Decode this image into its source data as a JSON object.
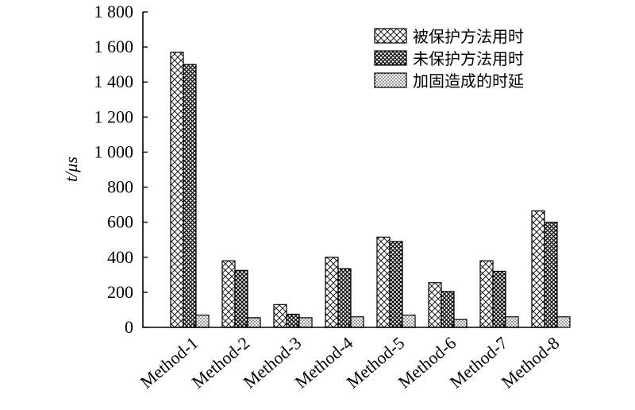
{
  "chart_data": {
    "type": "bar",
    "ylabel": "t/μs",
    "ylim": [
      0,
      1800
    ],
    "yticks": [
      0,
      200,
      400,
      600,
      800,
      1000,
      1200,
      1400,
      1600,
      1800
    ],
    "ytick_labels": [
      "0",
      "200",
      "400",
      "600",
      "800",
      "1 000",
      "1 200",
      "1 400",
      "1 600",
      "1 800"
    ],
    "categories": [
      "Method-1",
      "Method-2",
      "Method-3",
      "Method-4",
      "Method-5",
      "Method-6",
      "Method-7",
      "Method-8"
    ],
    "series": [
      {
        "name": "被保护方法用时",
        "pattern": "cross-light",
        "values": [
          1570,
          380,
          130,
          400,
          515,
          255,
          380,
          665
        ]
      },
      {
        "name": "未保护方法用时",
        "pattern": "cross-dark",
        "values": [
          1500,
          325,
          75,
          335,
          490,
          205,
          320,
          600
        ]
      },
      {
        "name": "加固造成的时延",
        "pattern": "dots",
        "values": [
          70,
          55,
          55,
          60,
          70,
          45,
          60,
          60
        ]
      }
    ],
    "legend_position": "top-right",
    "grid": false
  }
}
